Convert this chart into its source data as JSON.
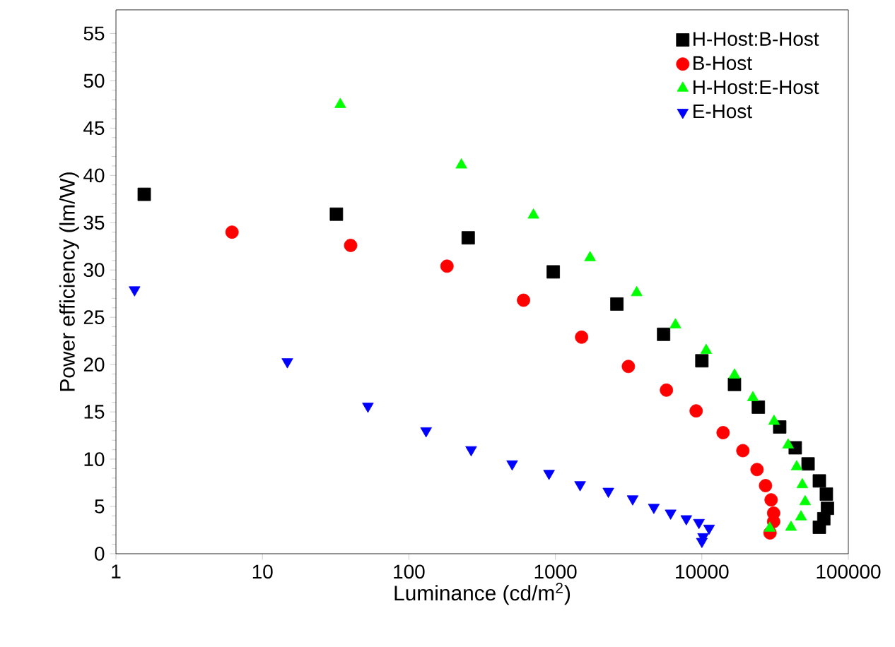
{
  "chart_data": {
    "type": "scatter",
    "xlabel": "Luminance (cd/m$^{2}$)",
    "ylabel": "Power efficiency (lm/W)",
    "log": "x",
    "xlim": [
      1,
      100000
    ],
    "xticks": [
      1,
      10,
      100,
      1000,
      10000,
      100000
    ],
    "ylim": [
      0,
      57.5
    ],
    "yticks": [
      0,
      5,
      10,
      15,
      20,
      25,
      30,
      35,
      40,
      45,
      50,
      55
    ],
    "legend": "top right",
    "series": [
      {
        "name": "H-Host:B-Host",
        "color": "#000000",
        "marker": "square",
        "x": [
          1.56,
          32,
          254,
          967,
          2630,
          5480,
          10000,
          16700,
          24300,
          34000,
          43400,
          53100,
          63400,
          70800,
          72000,
          68000,
          63400
        ],
        "values": [
          38.0,
          35.9,
          33.4,
          29.8,
          26.4,
          23.2,
          20.4,
          17.9,
          15.5,
          13.4,
          11.2,
          9.5,
          7.7,
          6.3,
          4.8,
          3.7,
          2.8
        ]
      },
      {
        "name": "B-Host",
        "color": "#ff0000",
        "marker": "circle",
        "x": [
          6.2,
          40,
          182,
          606,
          1510,
          3150,
          5730,
          9140,
          13960,
          19050,
          23800,
          27200,
          29700,
          30900,
          30900,
          29200
        ],
        "values": [
          34.0,
          32.6,
          30.4,
          26.8,
          22.9,
          19.8,
          17.3,
          15.1,
          12.8,
          10.9,
          8.9,
          7.2,
          5.7,
          4.3,
          3.4,
          2.2
        ]
      },
      {
        "name": "H-Host:E-Host",
        "color": "#00ff00",
        "marker": "triangle",
        "x": [
          34,
          228,
          708,
          1725,
          3590,
          6600,
          10700,
          16700,
          22300,
          31100,
          38800,
          44400,
          48500,
          50700,
          47500,
          40600,
          29100
        ],
        "values": [
          47.5,
          41.1,
          35.8,
          31.3,
          27.6,
          24.2,
          21.5,
          18.9,
          16.5,
          14.0,
          11.5,
          9.2,
          7.3,
          5.5,
          3.9,
          2.8,
          2.7
        ]
      },
      {
        "name": "E-Host",
        "color": "#0000ff",
        "marker": "triangle-down",
        "x": [
          1.34,
          14.8,
          52.5,
          131,
          266,
          507,
          905,
          1475,
          2300,
          3370,
          4700,
          6120,
          7830,
          9550,
          11200,
          10200,
          10000
        ],
        "values": [
          27.9,
          20.3,
          15.6,
          13.0,
          11.0,
          9.5,
          8.5,
          7.3,
          6.6,
          5.8,
          4.9,
          4.3,
          3.7,
          3.3,
          2.7,
          1.8,
          1.3
        ]
      }
    ]
  }
}
